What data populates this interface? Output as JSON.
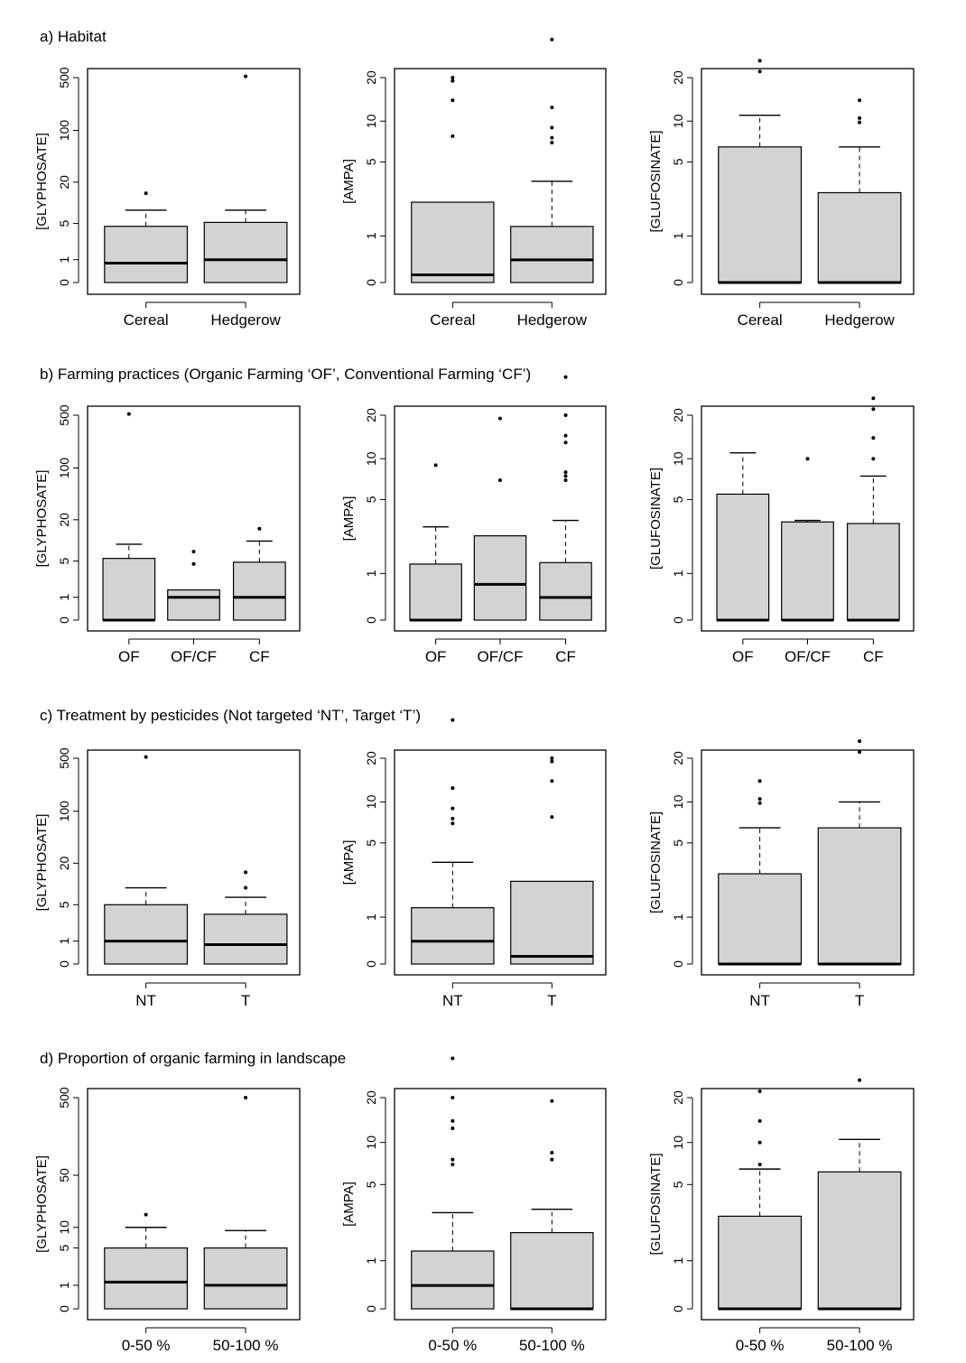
{
  "figure": {
    "sections": [
      {
        "id": "a",
        "title": "a) Habitat"
      },
      {
        "id": "b",
        "title": "b) Farming practices (Organic Farming ‘OF’, Conventional Farming ‘CF’)"
      },
      {
        "id": "c",
        "title": "c) Treatment by pesticides (Not targeted ‘NT’, Target ‘T’)"
      },
      {
        "id": "d",
        "title": "d) Proportion of organic farming in landscape"
      }
    ]
  },
  "chart_data": [
    {
      "type": "boxplot",
      "section": "a",
      "ylabel": "[GLYPHOSATE]",
      "yscale": "log1p",
      "ticks": [
        0,
        1,
        5,
        20,
        100,
        500
      ],
      "categories": [
        "Cereal",
        "Hedgerow"
      ],
      "boxes": [
        {
          "q1": 0,
          "median": 0.8,
          "q3": 4.5,
          "whisker_high": 8,
          "outliers": [
            14
          ]
        },
        {
          "q1": 0,
          "median": 1.0,
          "q3": 5.2,
          "whisker_high": 8,
          "outliers": [
            520
          ]
        }
      ]
    },
    {
      "type": "boxplot",
      "section": "a",
      "ylabel": "[AMPA]",
      "yscale": "log1p",
      "ticks": [
        0,
        1,
        5,
        10,
        20
      ],
      "categories": [
        "Cereal",
        "Hedgerow"
      ],
      "boxes": [
        {
          "q1": 0,
          "median": 0.12,
          "q3": 2.3,
          "whisker_high": 2.3,
          "outliers": [
            7.8,
            14,
            19,
            20
          ]
        },
        {
          "q1": 0,
          "median": 0.4,
          "q3": 1.3,
          "whisker_high": 3.5,
          "outliers": [
            7,
            7.6,
            9,
            12.5,
            36
          ]
        }
      ]
    },
    {
      "type": "boxplot",
      "section": "a",
      "ylabel": "[GLUFOSINATE]",
      "yscale": "log1p",
      "ticks": [
        0,
        1,
        5,
        10,
        20
      ],
      "categories": [
        "Cereal",
        "Hedgerow"
      ],
      "boxes": [
        {
          "q1": 0,
          "median": 0,
          "q3": 6.5,
          "whisker_high": 11,
          "outliers": [
            22,
            26
          ]
        },
        {
          "q1": 0,
          "median": 0,
          "q3": 2.8,
          "whisker_high": 6.5,
          "outliers": [
            9.8,
            10.5,
            14
          ]
        }
      ]
    },
    {
      "type": "boxplot",
      "section": "b",
      "ylabel": "[GLYPHOSATE]",
      "yscale": "log1p",
      "ticks": [
        0,
        1,
        5,
        20,
        100,
        500
      ],
      "categories": [
        "OF",
        "OF/CF",
        "CF"
      ],
      "boxes": [
        {
          "q1": 0,
          "median": 0,
          "q3": 5.5,
          "whisker_high": 9,
          "outliers": [
            520
          ]
        },
        {
          "q1": 0,
          "median": 1.0,
          "q3": 1.5,
          "whisker_high": 1.5,
          "outliers": [
            4.5,
            7
          ]
        },
        {
          "q1": 0,
          "median": 1.0,
          "q3": 4.8,
          "whisker_high": 10,
          "outliers": [
            15
          ]
        }
      ]
    },
    {
      "type": "boxplot",
      "section": "b",
      "ylabel": "[AMPA]",
      "yscale": "log1p",
      "ticks": [
        0,
        1,
        5,
        10,
        20
      ],
      "categories": [
        "OF",
        "OF/CF",
        "CF"
      ],
      "boxes": [
        {
          "q1": 0,
          "median": 0,
          "q3": 1.3,
          "whisker_high": 3,
          "outliers": [
            9
          ]
        },
        {
          "q1": 0,
          "median": 0.7,
          "q3": 2.5,
          "whisker_high": 2.5,
          "outliers": [
            7,
            19
          ]
        },
        {
          "q1": 0,
          "median": 0.4,
          "q3": 1.35,
          "whisker_high": 3.4,
          "outliers": [
            7,
            7.5,
            8,
            13,
            14.5,
            20,
            36
          ]
        }
      ]
    },
    {
      "type": "boxplot",
      "section": "b",
      "ylabel": "[GLUFOSINATE]",
      "yscale": "log1p",
      "ticks": [
        0,
        1,
        5,
        10,
        20
      ],
      "categories": [
        "OF",
        "OF/CF",
        "CF"
      ],
      "boxes": [
        {
          "q1": 0,
          "median": 0,
          "q3": 5.5,
          "whisker_high": 11,
          "outliers": []
        },
        {
          "q1": 0,
          "median": 0,
          "q3": 3.3,
          "whisker_high": 3.4,
          "outliers": [
            10
          ]
        },
        {
          "q1": 0,
          "median": 0,
          "q3": 3.2,
          "whisker_high": 7.5,
          "outliers": [
            10,
            14,
            22,
            26
          ]
        }
      ]
    },
    {
      "type": "boxplot",
      "section": "c",
      "ylabel": "[GLYPHOSATE]",
      "yscale": "log1p",
      "ticks": [
        0,
        1,
        5,
        20,
        100,
        500
      ],
      "categories": [
        "NT",
        "T"
      ],
      "boxes": [
        {
          "q1": 0,
          "median": 1.0,
          "q3": 5.0,
          "whisker_high": 9,
          "outliers": [
            520
          ]
        },
        {
          "q1": 0,
          "median": 0.8,
          "q3": 3.5,
          "whisker_high": 6.5,
          "outliers": [
            9,
            15
          ]
        }
      ]
    },
    {
      "type": "boxplot",
      "section": "c",
      "ylabel": "[AMPA]",
      "yscale": "log1p",
      "ticks": [
        0,
        1,
        5,
        10,
        20
      ],
      "categories": [
        "NT",
        "T"
      ],
      "boxes": [
        {
          "q1": 0,
          "median": 0.4,
          "q3": 1.3,
          "whisker_high": 3.5,
          "outliers": [
            7,
            7.6,
            9,
            12.5,
            36
          ]
        },
        {
          "q1": 0,
          "median": 0.12,
          "q3": 2.4,
          "whisker_high": 2.4,
          "outliers": [
            7.8,
            14,
            19,
            20
          ]
        }
      ]
    },
    {
      "type": "boxplot",
      "section": "c",
      "ylabel": "[GLUFOSINATE]",
      "yscale": "log1p",
      "ticks": [
        0,
        1,
        5,
        10,
        20
      ],
      "categories": [
        "NT",
        "T"
      ],
      "boxes": [
        {
          "q1": 0,
          "median": 0,
          "q3": 2.8,
          "whisker_high": 6.5,
          "outliers": [
            9.8,
            10.5,
            14
          ]
        },
        {
          "q1": 0,
          "median": 0,
          "q3": 6.5,
          "whisker_high": 10,
          "outliers": [
            22,
            26
          ]
        }
      ]
    },
    {
      "type": "boxplot",
      "section": "d",
      "ylabel": "[GLYPHOSATE]",
      "yscale": "log1p",
      "ticks": [
        0,
        1,
        5,
        10,
        50,
        500
      ],
      "categories": [
        "0-50 %",
        "50-100 %"
      ],
      "boxes": [
        {
          "q1": 0,
          "median": 1.2,
          "q3": 5,
          "whisker_high": 10,
          "outliers": [
            15
          ]
        },
        {
          "q1": 0,
          "median": 1.0,
          "q3": 5,
          "whisker_high": 9,
          "outliers": [
            500
          ]
        }
      ]
    },
    {
      "type": "boxplot",
      "section": "d",
      "ylabel": "[AMPA]",
      "yscale": "log1p",
      "ticks": [
        0,
        1,
        5,
        10,
        20
      ],
      "categories": [
        "0-50 %",
        "50-100 %"
      ],
      "boxes": [
        {
          "q1": 0,
          "median": 0.4,
          "q3": 1.3,
          "whisker_high": 3,
          "outliers": [
            7,
            7.6,
            12.5,
            14,
            20,
            36
          ]
        },
        {
          "q1": 0,
          "median": 0,
          "q3": 2.0,
          "whisker_high": 3.2,
          "outliers": [
            7.6,
            8.5,
            19
          ]
        }
      ]
    },
    {
      "type": "boxplot",
      "section": "d",
      "ylabel": "[GLUFOSINATE]",
      "yscale": "log1p",
      "ticks": [
        0,
        1,
        5,
        10,
        20
      ],
      "categories": [
        "0-50 %",
        "50-100 %"
      ],
      "boxes": [
        {
          "q1": 0,
          "median": 0,
          "q3": 2.8,
          "whisker_high": 6.5,
          "outliers": [
            7,
            10,
            14,
            22
          ]
        },
        {
          "q1": 0,
          "median": 0,
          "q3": 6.2,
          "whisker_high": 10.5,
          "outliers": [
            26
          ]
        }
      ]
    }
  ]
}
